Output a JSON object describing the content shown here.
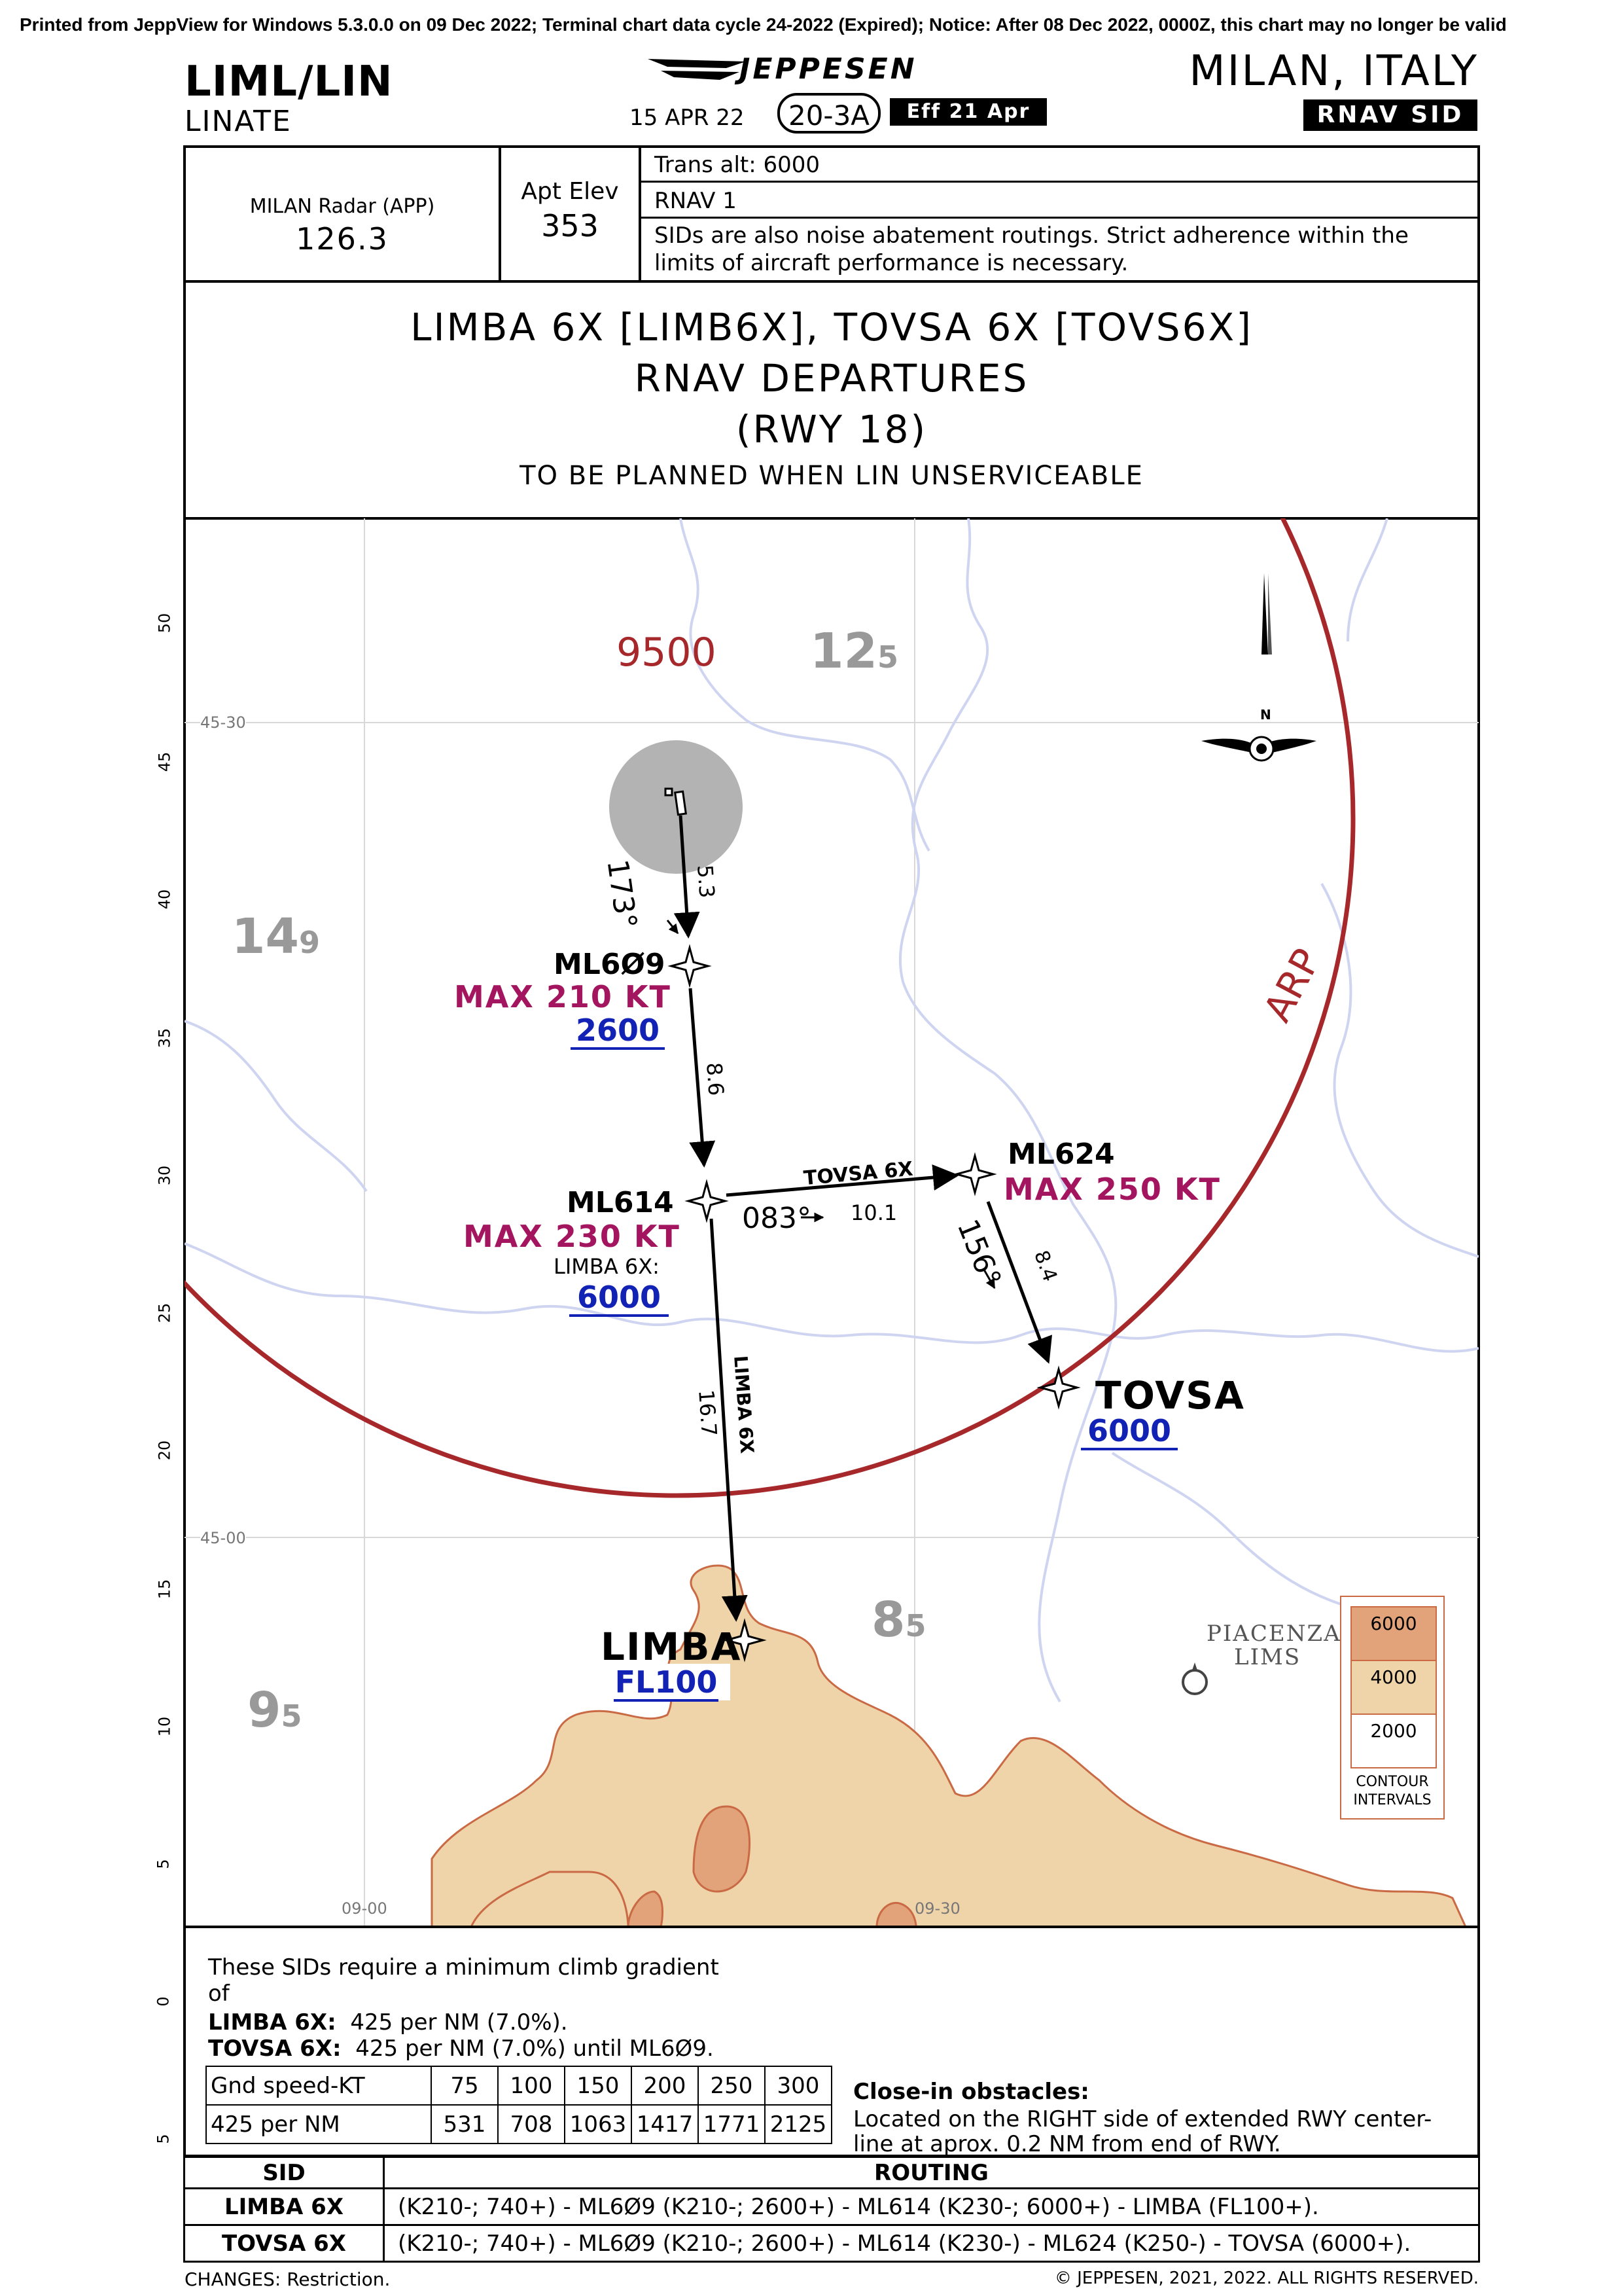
{
  "print_line": "Printed from JeppView for Windows 5.3.0.0 on 09 Dec 2022; Terminal chart data cycle 24-2022 (Expired); Notice: After 08 Dec 2022, 0000Z, this chart may no longer be valid",
  "header": {
    "icao": "LIML/LIN",
    "airport": "LINATE",
    "publisher": "JEPPESEN",
    "date": "15 APR 22",
    "chart_no": "20-3A",
    "effective": "Eff 21 Apr",
    "city": "MILAN, ITALY",
    "proc_type": "RNAV SID"
  },
  "info": {
    "radar_label": "MILAN Radar (APP)",
    "radar_freq": "126.3",
    "elev_label": "Apt Elev",
    "elev_value": "353",
    "trans_alt": "Trans alt: 6000",
    "rnav": "RNAV 1",
    "noise_line1": "SIDs are also noise abatement routings. Strict adherence within the",
    "noise_line2": "limits of aircraft performance is necessary."
  },
  "title": {
    "line1": "LIMBA 6X [LIMB6X], TOVSA 6X [TOVS6X]",
    "line2": "RNAV DEPARTURES",
    "line3": "(RWY 18)",
    "line4": "TO BE PLANNED WHEN LIN UNSERVICEABLE"
  },
  "map": {
    "lat_scale": [
      "50",
      "45",
      "40",
      "35",
      "30",
      "25",
      "20",
      "15",
      "10",
      "5",
      "0",
      "5"
    ],
    "lat_45_30": "45-30",
    "lat_45_00": "45-00",
    "lon_09_00": "09-00",
    "lon_09_30": "09-30",
    "msa": "9500",
    "arp": "ARP",
    "grid_mora": [
      {
        "big": "12",
        "small": "5"
      },
      {
        "big": "14",
        "small": "9"
      },
      {
        "big": "9",
        "small": "5"
      },
      {
        "big": "8",
        "small": "5"
      }
    ],
    "north": "N",
    "legs": {
      "rwy_course": "173°",
      "rwy_dist": "5.3",
      "ml609_ml614_dist": "8.6",
      "tovsa_label": "TOVSA 6X",
      "ml614_ml624_course": "083°",
      "ml614_ml624_dist": "10.1",
      "ml624_tovsa_course": "156°",
      "ml624_tovsa_dist": "8.4",
      "limba_label": "LIMBA 6X",
      "ml614_limba_dist": "16.7"
    },
    "fixes": {
      "ml609": {
        "name": "ML6Ø9",
        "speed": "MAX 210 KT",
        "alt": "2600"
      },
      "ml614": {
        "name": "ML614",
        "speed": "MAX 230 KT",
        "note": "LIMBA 6X:",
        "alt": "6000"
      },
      "ml624": {
        "name": "ML624",
        "speed": "MAX 250 KT"
      },
      "tovsa": {
        "name": "TOVSA",
        "alt": "6000"
      },
      "limba": {
        "name": "LIMBA",
        "alt": "FL100"
      }
    },
    "piacenza": [
      "PIACENZA",
      "LIMS"
    ],
    "contour": {
      "levels": [
        "6000",
        "4000",
        "2000"
      ],
      "label1": "CONTOUR",
      "label2": "INTERVALS"
    },
    "colors": {
      "terrain_low": "#efd3a9",
      "terrain_high": "#e2a37a",
      "arp_circle": "#a6282b",
      "water": "#cfd5f1",
      "speed_text": "#a3155f",
      "alt_text": "#1222b4"
    }
  },
  "climb": {
    "line1": "These SIDs require a minimum climb gradient",
    "line2": "of",
    "limba_label": "LIMBA 6X:",
    "limba_value": "425 per NM (7.0%).",
    "tovsa_label": "TOVSA 6X:",
    "tovsa_value": "425 per NM (7.0%) until ML6Ø9.",
    "table_head": [
      "Gnd speed-KT",
      "75",
      "100",
      "150",
      "200",
      "250",
      "300"
    ],
    "table_row": [
      "425 per NM",
      "531",
      "708",
      "1063",
      "1417",
      "1771",
      "2125"
    ]
  },
  "obstacles": {
    "title": "Close-in obstacles:",
    "line1": "Located on the RIGHT side of extended RWY center-",
    "line2": "line at aprox. 0.2 NM from end of RWY."
  },
  "routing": {
    "col_sid": "SID",
    "col_routing": "ROUTING",
    "rows": [
      {
        "sid": "LIMBA 6X",
        "route": "(K210-; 740+) - ML6Ø9 (K210-; 2600+) - ML614 (K230-; 6000+) - LIMBA (FL100+)."
      },
      {
        "sid": "TOVSA 6X",
        "route": "(K210-; 740+) - ML6Ø9 (K210-; 2600+) - ML614 (K230-) - ML624 (K250-) - TOVSA (6000+)."
      }
    ]
  },
  "footer": {
    "changes": "CHANGES:  Restriction.",
    "copyright": "© JEPPESEN, 2021, 2022. ALL RIGHTS RESERVED."
  }
}
